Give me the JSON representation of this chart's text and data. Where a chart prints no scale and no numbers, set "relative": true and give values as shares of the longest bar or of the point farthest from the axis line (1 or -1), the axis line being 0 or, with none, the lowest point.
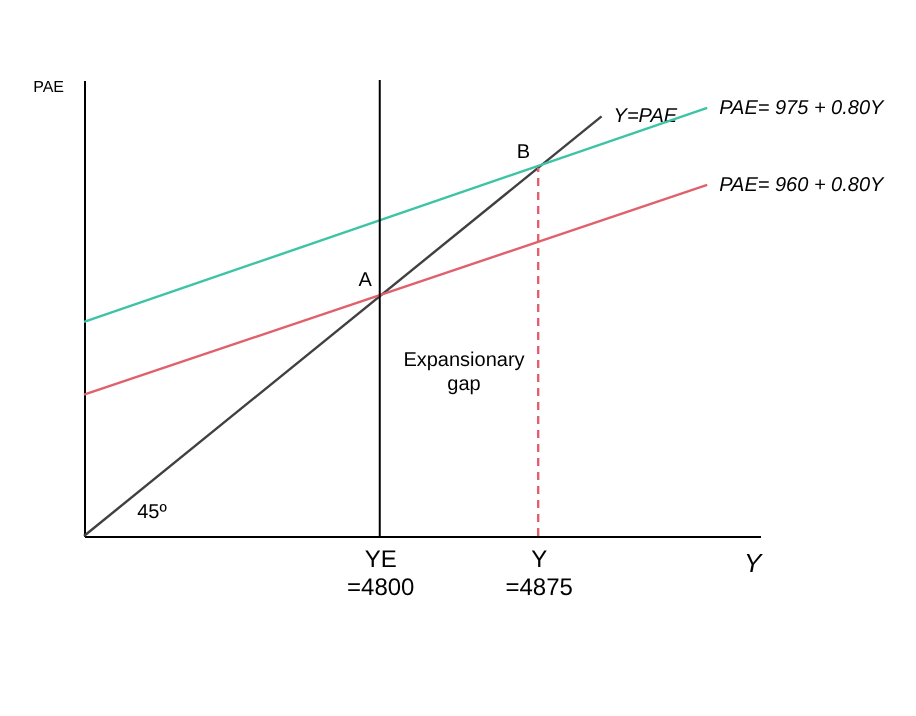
{
  "chart_data": {
    "type": "line",
    "xlabel": "Y",
    "ylabel": "PAE",
    "relative": true,
    "x": [
      4660,
      4955
    ],
    "series": [
      {
        "name": "Y=PAE",
        "color": "#404040",
        "x": [
          4660,
          4905
        ],
        "values": [
          0,
          0.98
        ]
      },
      {
        "name": "PAE= 975 + 0.80Y",
        "color": "#3cc4a4",
        "values": [
          0.5,
          1
        ]
      },
      {
        "name": "PAE= 960 + 0.80Y",
        "color": "#e0606c",
        "values": [
          0.33,
          0.82
        ]
      },
      {
        "color": "#e0606c",
        "x": [
          4875,
          4875
        ],
        "values": [
          0,
          0.86
        ],
        "line_style": "dashed"
      }
    ],
    "ref_lines": [
      {
        "axis": "x",
        "value": 4800,
        "color": "#000000"
      }
    ],
    "annotations": [
      {
        "text": "A",
        "x": 4800,
        "y": 0.56
      },
      {
        "text": "B",
        "x": 4875,
        "y": 0.86
      },
      "45º",
      "Expansionary gap"
    ],
    "xlim": [
      4660,
      4980
    ],
    "xticks": [
      {
        "value": 4800,
        "label": "YE\n=4800"
      },
      {
        "value": 4875,
        "label": "Y\n=4875"
      }
    ],
    "tick_labels": "x",
    "grid": false,
    "legend": false,
    "marker": "none",
    "line_style": "solid"
  }
}
